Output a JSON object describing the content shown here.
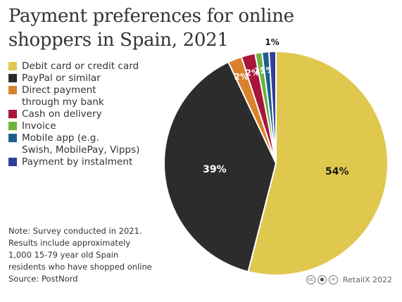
{
  "title": "Payment preferences for online shoppers in Spain, 2021",
  "note": "Note: Survey conducted in 2021.\nResults include approximately\n1,000 15-79 year old Spain\nresidents who have shopped online\nSource: PostNord",
  "credit": {
    "text": "RetailX 2022",
    "icons": [
      "cc-icon",
      "by-icon",
      "equals-icon"
    ]
  },
  "chart_data": {
    "type": "pie",
    "title": "Payment preferences for online shoppers in Spain, 2021",
    "legend_position": "left",
    "slices": [
      {
        "label": "Debit card or credit card",
        "value": 54,
        "color": "#e0c74e",
        "data_label": "54%"
      },
      {
        "label": "PayPal or similar",
        "value": 39,
        "color": "#2c2c2c",
        "data_label": "39%"
      },
      {
        "label": "Direct payment\nthrough my bank",
        "value": 2,
        "color": "#d9822b",
        "data_label": "2%"
      },
      {
        "label": "Cash on delivery",
        "value": 2,
        "color": "#a8163b",
        "data_label": "2%"
      },
      {
        "label": "Invoice",
        "value": 1,
        "color": "#6cb33f",
        "data_label": "1%"
      },
      {
        "label": "Mobile app (e.g.\nSwish, MobilePay, Vipps)",
        "value": 1,
        "color": "#1d5f8c",
        "data_label": "1%"
      },
      {
        "label": "Payment by instalment",
        "value": 1,
        "color": "#2e3f9e",
        "data_label": "1%"
      }
    ]
  }
}
